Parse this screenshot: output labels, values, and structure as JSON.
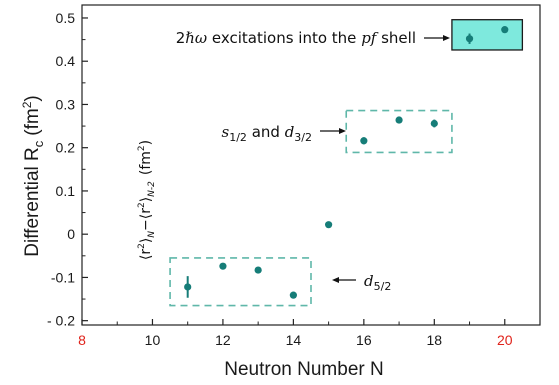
{
  "colors": {
    "marker": "#167d78",
    "dashed_box": "#5fb7a9",
    "shaded_fill": "#7ee9dd",
    "shaded_stroke": "#1a1a1a",
    "red_tick": "#e0231b",
    "axis": "#222222"
  },
  "chart_data": {
    "type": "scatter",
    "xlabel": "Neutron Number N",
    "ylabel": "Differential R",
    "ylabel_subscript": "c",
    "ylabel_units": "(fm",
    "ylabel_units_power": "2",
    "ylabel_units_close": ")",
    "inner_ylabel": "⟨r²⟩N − ⟨r²⟩N−2 (fm²)",
    "inner_ylabel_parts": {
      "r1": "⟨r",
      "sup1": "2",
      "sub1": "⟩",
      "subN": "N",
      "minus": "−",
      "r2": "⟨r",
      "sup2": "2",
      "sub2": "⟩",
      "subN2": "N-2",
      "units": "(fm",
      "units_power": "2",
      "units_close": ")"
    },
    "xlim": [
      8,
      21
    ],
    "ylim": [
      -0.21,
      0.53
    ],
    "x_ticks": [
      8,
      10,
      12,
      14,
      16,
      18,
      20
    ],
    "x_tick_labels": [
      "8",
      "10",
      "12",
      "14",
      "16",
      "18",
      "20"
    ],
    "x_tick_label_colors": [
      "#e0231b",
      "#1a1a1a",
      "#1a1a1a",
      "#1a1a1a",
      "#1a1a1a",
      "#1a1a1a",
      "#e0231b"
    ],
    "x_minor_ticks": [
      9,
      11,
      13,
      15,
      17,
      19
    ],
    "y_ticks": [
      -0.2,
      -0.1,
      0,
      0.1,
      0.2,
      0.3,
      0.4,
      0.5
    ],
    "y_tick_labels": [
      "- 0.2",
      "-0.1",
      "0",
      "0.1",
      "0.2",
      "0.3",
      "0.4",
      "0.5"
    ],
    "grid": false,
    "series": [
      {
        "points": [
          {
            "x": 11,
            "y": -0.122,
            "err": 0.025
          },
          {
            "x": 12,
            "y": -0.074,
            "err": 0.004
          },
          {
            "x": 13,
            "y": -0.083,
            "err": 0.004
          },
          {
            "x": 14,
            "y": -0.141,
            "err": 0.004
          },
          {
            "x": 15,
            "y": 0.022,
            "err": 0.004
          },
          {
            "x": 16,
            "y": 0.216,
            "err": 0.008
          },
          {
            "x": 17,
            "y": 0.264,
            "err": 0.004
          },
          {
            "x": 18,
            "y": 0.256,
            "err": 0.009
          },
          {
            "x": 19,
            "y": 0.452,
            "err": 0.012
          },
          {
            "x": 20,
            "y": 0.473,
            "err": 0.004
          }
        ]
      }
    ],
    "regions": [
      {
        "id": "d52",
        "style": "dashed",
        "x_range": [
          10.5,
          14.5
        ],
        "y_range": [
          -0.165,
          -0.055
        ],
        "label_main": "d",
        "label_sub": "5/2",
        "label_position": "right"
      },
      {
        "id": "s12d32",
        "style": "dashed",
        "x_range": [
          15.5,
          18.5
        ],
        "y_range": [
          0.189,
          0.286
        ],
        "label_s": "s",
        "label_s_sub": "1/2",
        "label_and": " and ",
        "label_d": "d",
        "label_d_sub": "3/2",
        "label_position": "left"
      },
      {
        "id": "pf",
        "style": "shaded",
        "x_range": [
          18.5,
          20.5
        ],
        "y_range": [
          0.426,
          0.496
        ],
        "label_prefix": "2",
        "label_hbar": "ℏω",
        "label_middle": " excitations into the ",
        "label_italic": "pf",
        "label_suffix": " shell",
        "label_position": "left"
      }
    ]
  }
}
